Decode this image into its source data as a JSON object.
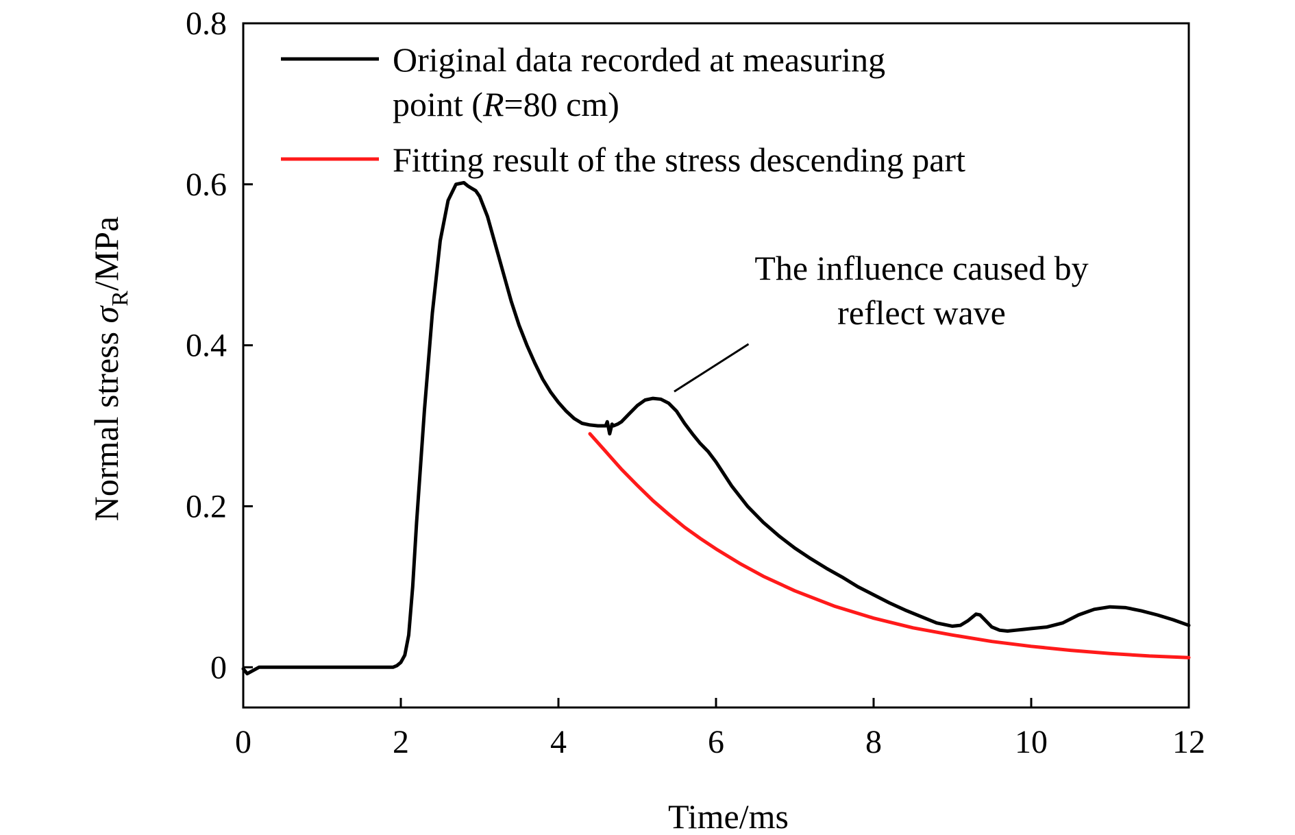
{
  "chart_data": {
    "type": "line",
    "title": "",
    "xlabel": "Time/ms",
    "ylabel": {
      "prefix": "Normal stress ",
      "symbol": "σ",
      "subscript": "R",
      "suffix": "/MPa"
    },
    "xlim": [
      0,
      12
    ],
    "ylim": [
      -0.05,
      0.8
    ],
    "xticks": [
      0,
      2,
      4,
      6,
      8,
      10,
      12
    ],
    "xtick_labels": [
      "0",
      "2",
      "4",
      "6",
      "8",
      "10",
      "12"
    ],
    "yticks": [
      0,
      0.2,
      0.4,
      0.6,
      0.8
    ],
    "ytick_labels": [
      "0",
      "0.2",
      "0.4",
      "0.6",
      "0.8"
    ],
    "grid": false,
    "legend_position": "top",
    "series": [
      {
        "name_line1": "Original data recorded at measuring",
        "name_line2_prefix": "point (",
        "name_line2_italic": "R",
        "name_line2_suffix": "=80 cm)",
        "color": "#000000",
        "x": [
          0.0,
          0.05,
          0.2,
          0.5,
          1.0,
          1.5,
          1.8,
          1.9,
          1.95,
          2.0,
          2.05,
          2.1,
          2.15,
          2.2,
          2.3,
          2.4,
          2.5,
          2.6,
          2.7,
          2.8,
          2.85,
          2.9,
          2.95,
          3.0,
          3.1,
          3.2,
          3.3,
          3.4,
          3.5,
          3.6,
          3.7,
          3.8,
          3.9,
          4.0,
          4.1,
          4.2,
          4.3,
          4.4,
          4.5,
          4.6,
          4.62,
          4.65,
          4.68,
          4.7,
          4.75,
          4.8,
          4.9,
          5.0,
          5.1,
          5.2,
          5.3,
          5.4,
          5.5,
          5.6,
          5.7,
          5.8,
          5.9,
          6.0,
          6.2,
          6.4,
          6.6,
          6.8,
          7.0,
          7.2,
          7.4,
          7.6,
          7.8,
          8.0,
          8.2,
          8.4,
          8.6,
          8.8,
          9.0,
          9.1,
          9.2,
          9.3,
          9.35,
          9.4,
          9.5,
          9.6,
          9.7,
          9.8,
          9.9,
          10.0,
          10.2,
          10.4,
          10.6,
          10.8,
          11.0,
          11.2,
          11.4,
          11.6,
          11.8,
          12.0
        ],
        "y": [
          -0.002,
          -0.008,
          0.0,
          0.0,
          0.0,
          0.0,
          0.0,
          0.0,
          0.002,
          0.006,
          0.015,
          0.04,
          0.1,
          0.18,
          0.32,
          0.44,
          0.53,
          0.58,
          0.6,
          0.602,
          0.598,
          0.595,
          0.592,
          0.585,
          0.56,
          0.525,
          0.49,
          0.455,
          0.425,
          0.4,
          0.378,
          0.358,
          0.342,
          0.329,
          0.318,
          0.309,
          0.303,
          0.301,
          0.3,
          0.3,
          0.305,
          0.29,
          0.302,
          0.3,
          0.302,
          0.305,
          0.315,
          0.325,
          0.332,
          0.334,
          0.333,
          0.328,
          0.318,
          0.303,
          0.29,
          0.278,
          0.268,
          0.255,
          0.225,
          0.2,
          0.18,
          0.163,
          0.148,
          0.135,
          0.123,
          0.112,
          0.1,
          0.09,
          0.08,
          0.071,
          0.063,
          0.055,
          0.051,
          0.052,
          0.058,
          0.066,
          0.065,
          0.06,
          0.05,
          0.046,
          0.045,
          0.046,
          0.047,
          0.048,
          0.05,
          0.055,
          0.065,
          0.072,
          0.075,
          0.074,
          0.07,
          0.065,
          0.059,
          0.052
        ]
      },
      {
        "name": "Fitting result of the stress descending part",
        "color": "#ff1a1a",
        "x": [
          4.4,
          4.6,
          4.8,
          5.0,
          5.2,
          5.4,
          5.6,
          5.8,
          6.0,
          6.3,
          6.6,
          7.0,
          7.5,
          8.0,
          8.5,
          9.0,
          9.5,
          10.0,
          10.5,
          11.0,
          11.5,
          12.0
        ],
        "y": [
          0.29,
          0.268,
          0.246,
          0.226,
          0.207,
          0.19,
          0.174,
          0.16,
          0.147,
          0.129,
          0.113,
          0.095,
          0.076,
          0.061,
          0.049,
          0.04,
          0.032,
          0.026,
          0.021,
          0.017,
          0.014,
          0.012
        ]
      }
    ],
    "annotations": [
      {
        "lines": [
          "The influence caused by",
          "reflect wave"
        ],
        "points_to": [
          5.4,
          0.334
        ],
        "text_at": [
          6.5,
          0.41
        ]
      }
    ]
  }
}
